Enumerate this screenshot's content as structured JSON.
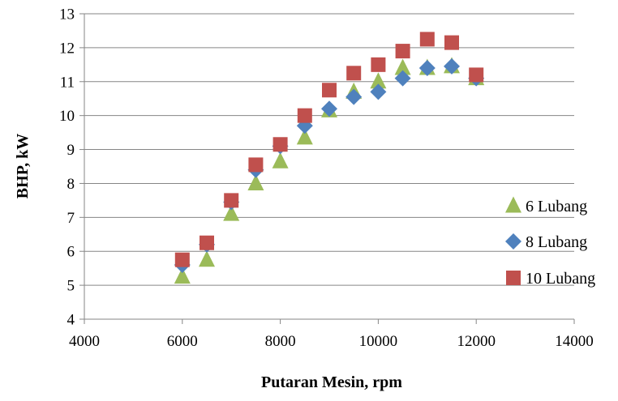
{
  "chart_data": {
    "type": "scatter",
    "title": "",
    "xlabel": "Putaran Mesin, rpm",
    "ylabel": "BHP, kW",
    "xlim": [
      4000,
      14000
    ],
    "ylim": [
      4,
      13
    ],
    "xticks": [
      4000,
      6000,
      8000,
      10000,
      12000,
      14000
    ],
    "yticks": [
      4,
      5,
      6,
      7,
      8,
      9,
      10,
      11,
      12,
      13
    ],
    "grid": "horizontal",
    "legend_position": "right",
    "series": [
      {
        "name": "6 Lubang",
        "marker": "triangle",
        "color": "#9bbb59",
        "points": [
          {
            "x": 6000,
            "y": 5.25
          },
          {
            "x": 6500,
            "y": 5.75
          },
          {
            "x": 7000,
            "y": 7.1
          },
          {
            "x": 7500,
            "y": 8.0
          },
          {
            "x": 8000,
            "y": 8.65
          },
          {
            "x": 8500,
            "y": 9.35
          },
          {
            "x": 9000,
            "y": 10.15
          },
          {
            "x": 9500,
            "y": 10.7
          },
          {
            "x": 10000,
            "y": 11.0
          },
          {
            "x": 10500,
            "y": 11.4
          },
          {
            "x": 11000,
            "y": 11.4
          },
          {
            "x": 11500,
            "y": 11.45
          },
          {
            "x": 12000,
            "y": 11.1
          }
        ]
      },
      {
        "name": "8 Lubang",
        "marker": "diamond",
        "color": "#4f81bd",
        "points": [
          {
            "x": 6000,
            "y": 5.6
          },
          {
            "x": 6500,
            "y": 6.2
          },
          {
            "x": 7000,
            "y": 7.45
          },
          {
            "x": 7500,
            "y": 8.4
          },
          {
            "x": 8000,
            "y": 9.1
          },
          {
            "x": 8500,
            "y": 9.7
          },
          {
            "x": 9000,
            "y": 10.2
          },
          {
            "x": 9500,
            "y": 10.55
          },
          {
            "x": 10000,
            "y": 10.7
          },
          {
            "x": 10500,
            "y": 11.1
          },
          {
            "x": 11000,
            "y": 11.4
          },
          {
            "x": 11500,
            "y": 11.45
          },
          {
            "x": 12000,
            "y": 11.1
          }
        ]
      },
      {
        "name": "10 Lubang",
        "marker": "square",
        "color": "#c0504d",
        "points": [
          {
            "x": 6000,
            "y": 5.75
          },
          {
            "x": 6500,
            "y": 6.25
          },
          {
            "x": 7000,
            "y": 7.5
          },
          {
            "x": 7500,
            "y": 8.55
          },
          {
            "x": 8000,
            "y": 9.15
          },
          {
            "x": 8500,
            "y": 10.0
          },
          {
            "x": 9000,
            "y": 10.75
          },
          {
            "x": 9500,
            "y": 11.25
          },
          {
            "x": 10000,
            "y": 11.5
          },
          {
            "x": 10500,
            "y": 11.9
          },
          {
            "x": 11000,
            "y": 12.25
          },
          {
            "x": 11500,
            "y": 12.15
          },
          {
            "x": 12000,
            "y": 11.2
          }
        ]
      }
    ]
  },
  "colors": {
    "grid": "#868686",
    "axis": "#868686",
    "text": "#000000"
  }
}
